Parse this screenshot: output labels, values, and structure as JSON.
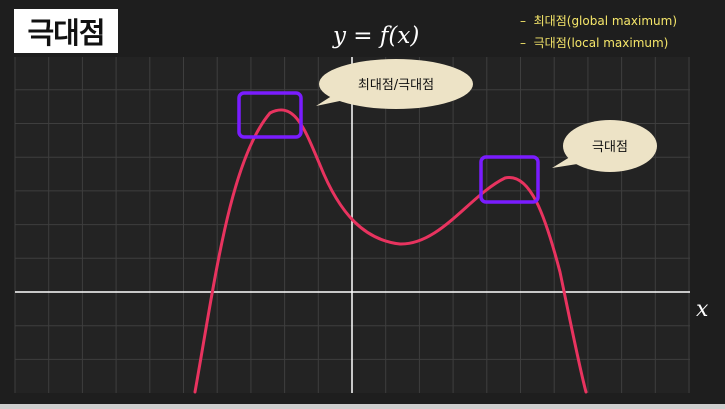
{
  "title": "극대점",
  "equation": {
    "prefix": "y = ",
    "func": "f",
    "arg": "(x)"
  },
  "x_axis_label": "x",
  "legend": [
    {
      "dash": "–",
      "text": "최대점(global maximum)"
    },
    {
      "dash": "–",
      "text": "극대점(local maximum)"
    }
  ],
  "callouts": {
    "global": "최대점/극대점",
    "local": "극대점"
  },
  "colors": {
    "background": "#1e1e1e",
    "grid": "#3e3e3e",
    "axis": "#ffffff",
    "curve": "#e8335f",
    "highlight_box": "#7a1cff",
    "callout_fill": "#ede3c6",
    "legend_text": "#f5e66a"
  }
}
